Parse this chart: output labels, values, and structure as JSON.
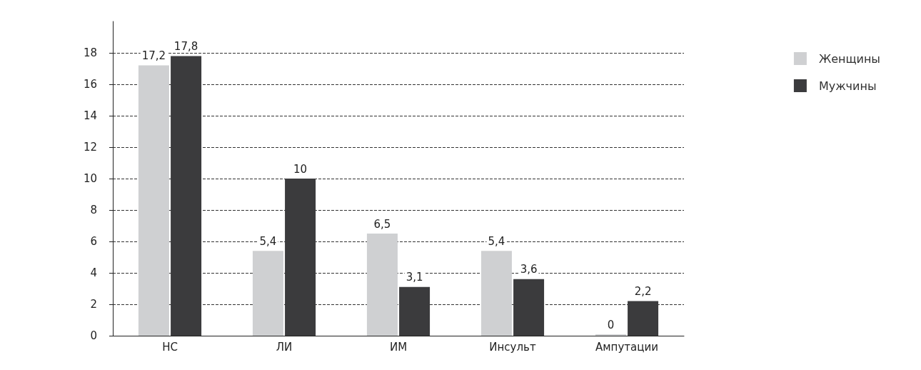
{
  "chart_data": {
    "type": "bar",
    "categories": [
      "НС",
      "ЛИ",
      "ИМ",
      "Инсульт",
      "Ампутации"
    ],
    "series": [
      {
        "name": "Женщины",
        "color": "#cfd0d2",
        "values": [
          17.2,
          5.4,
          6.5,
          5.4,
          0
        ],
        "value_labels": [
          "17,2",
          "5,4",
          "6,5",
          "5,4",
          "0"
        ]
      },
      {
        "name": "Мужчины",
        "color": "#3b3b3d",
        "values": [
          17.8,
          10,
          3.1,
          3.6,
          2.2
        ],
        "value_labels": [
          "17,8",
          "10",
          "3,1",
          "3,6",
          "2,2"
        ]
      }
    ],
    "ylim": [
      0,
      20
    ],
    "yticks": [
      0,
      2,
      4,
      6,
      8,
      10,
      12,
      14,
      16,
      18
    ],
    "grid": "y",
    "legend": "top right"
  }
}
